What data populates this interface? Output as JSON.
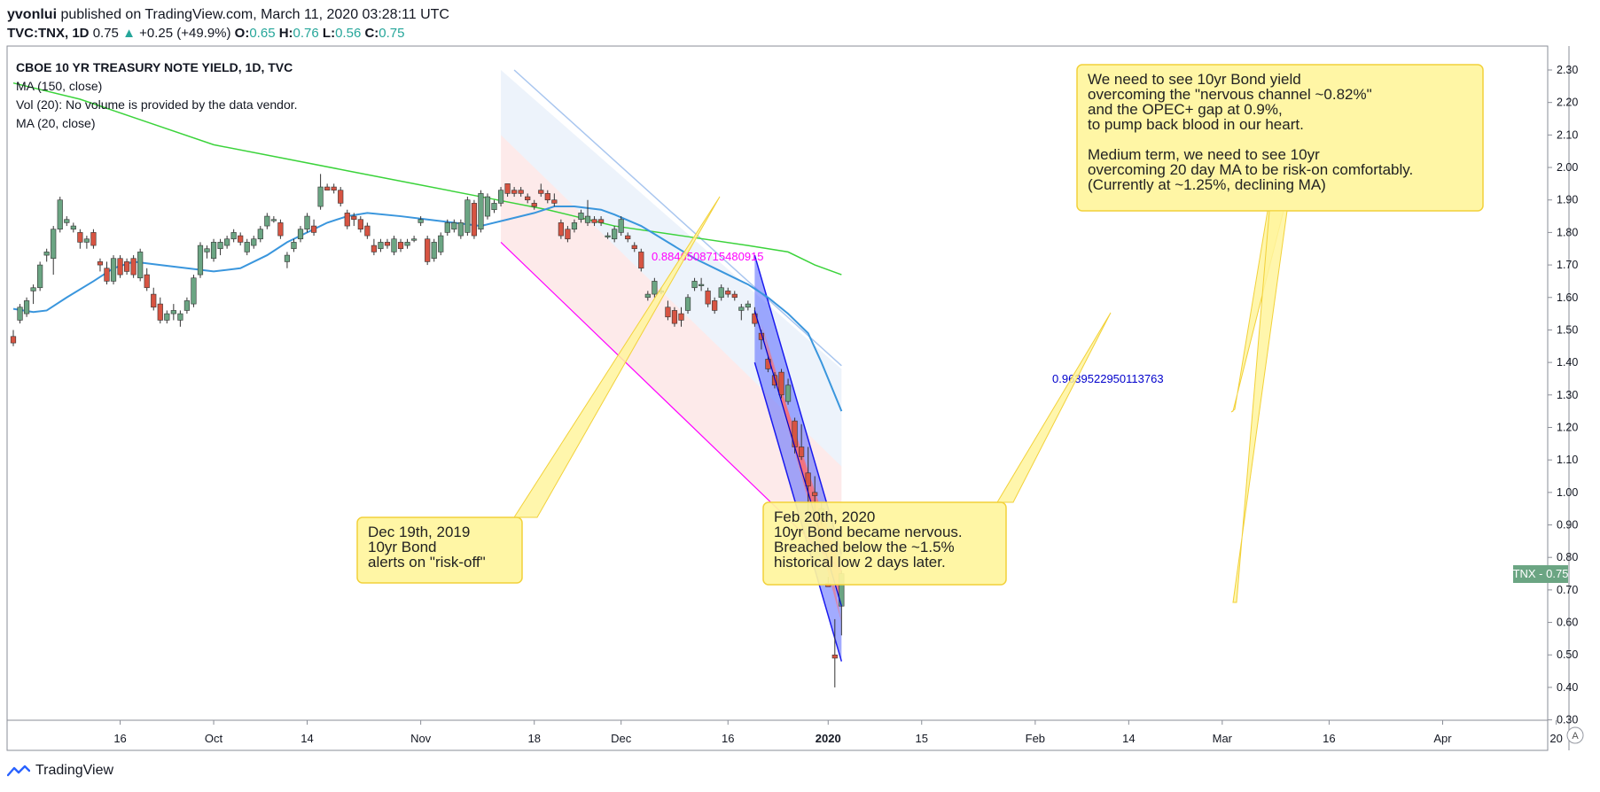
{
  "header": {
    "author": "yvonlui",
    "published": "published on TradingView.com, March 11, 2020 03:28:11 UTC",
    "symbol": "TVC:TNX, 1D",
    "last": "0.75",
    "change_arrow": "▲",
    "change": "+0.25 (+49.9%)",
    "o_label": "O:",
    "o_val": "0.65",
    "h_label": "H:",
    "h_val": "0.76",
    "l_label": "L:",
    "l_val": "0.56",
    "c_label": "C:",
    "c_val": "0.75"
  },
  "legend": {
    "title": "CBOE 10 YR TREASURY NOTE YIELD, 1D, TVC",
    "ma150": "MA (150, close)",
    "vol": "Vol (20): No volume is provided by the data vendor.",
    "ma20": "MA (20, close)"
  },
  "colors": {
    "up": "#6ba583",
    "down": "#d75442",
    "ma150": "#3bd33b",
    "ma20": "#3a96dd",
    "callout_bg": "#fff59d",
    "callout_border": "#f2d13a",
    "channel_red": "#f7b8b8",
    "channel_blue": "#b8cff0",
    "fib_magenta": "#ff00ff",
    "fib_blue": "#0000cc"
  },
  "footer": {
    "brand": "TradingView"
  },
  "price_tag": {
    "symbol": "TNX",
    "value": "0.75"
  },
  "annotations": {
    "callout1": [
      "Dec 19th, 2019",
      "10yr Bond",
      "alerts on \"risk-off\""
    ],
    "callout2": [
      "Feb 20th, 2020",
      "10yr Bond became nervous.",
      "Breached below the ~1.5%",
      "historical low 2 days later."
    ],
    "callout3": [
      "We need to see 10yr Bond yield",
      "overcoming the \"nervous channel ~0.82%\"",
      "and the OPEC+ gap at 0.9%,",
      "to pump back blood in our heart.",
      "",
      "Medium term, we need to see 10yr",
      "overcoming 20 day MA to be risk-on comfortably.",
      "(Currently at ~1.25%, declining MA)"
    ],
    "fib1": "0.8846508715480915",
    "fib2": "0.9639522950113763"
  },
  "chart_data": {
    "type": "candlestick",
    "title": "CBOE 10 YR TREASURY NOTE YIELD, 1D, TVC",
    "y_ticks": [
      "2.30",
      "2.20",
      "2.10",
      "2.00",
      "1.90",
      "1.80",
      "1.70",
      "1.60",
      "1.50",
      "1.40",
      "1.30",
      "1.20",
      "1.10",
      "1.00",
      "0.90",
      "0.80",
      "0.70",
      "0.60",
      "0.50",
      "0.40",
      "0.30"
    ],
    "ylim": [
      0.3,
      2.3
    ],
    "x_ticks": [
      {
        "label": "16",
        "x": 16,
        "bold": false
      },
      {
        "label": "Oct",
        "x": 30,
        "bold": false
      },
      {
        "label": "14",
        "x": 44,
        "bold": false
      },
      {
        "label": "Nov",
        "x": 61,
        "bold": false
      },
      {
        "label": "18",
        "x": 78,
        "bold": false
      },
      {
        "label": "Dec",
        "x": 91,
        "bold": false
      },
      {
        "label": "16",
        "x": 107,
        "bold": false
      },
      {
        "label": "2020",
        "x": 122,
        "bold": true
      },
      {
        "label": "15",
        "x": 136,
        "bold": false
      },
      {
        "label": "Feb",
        "x": 153,
        "bold": false
      },
      {
        "label": "14",
        "x": 167,
        "bold": false
      },
      {
        "label": "Mar",
        "x": 181,
        "bold": false
      },
      {
        "label": "16",
        "x": 197,
        "bold": false
      },
      {
        "label": "Apr",
        "x": 214,
        "bold": false
      },
      {
        "label": "20",
        "x": 231,
        "bold": false
      }
    ],
    "candles": [
      [
        0,
        1.48,
        1.5,
        1.45,
        1.46
      ],
      [
        1,
        1.53,
        1.58,
        1.52,
        1.57
      ],
      [
        2,
        1.55,
        1.6,
        1.54,
        1.59
      ],
      [
        3,
        1.62,
        1.64,
        1.58,
        1.63
      ],
      [
        4,
        1.63,
        1.71,
        1.62,
        1.7
      ],
      [
        5,
        1.73,
        1.75,
        1.71,
        1.74
      ],
      [
        6,
        1.72,
        1.82,
        1.67,
        1.81
      ],
      [
        7,
        1.81,
        1.91,
        1.8,
        1.9
      ],
      [
        8,
        1.83,
        1.85,
        1.82,
        1.84
      ],
      [
        9,
        1.81,
        1.83,
        1.8,
        1.82
      ],
      [
        10,
        1.8,
        1.81,
        1.75,
        1.77
      ],
      [
        11,
        1.77,
        1.79,
        1.75,
        1.78
      ],
      [
        12,
        1.8,
        1.81,
        1.75,
        1.76
      ],
      [
        13,
        1.71,
        1.72,
        1.68,
        1.7
      ],
      [
        14,
        1.69,
        1.71,
        1.64,
        1.65
      ],
      [
        15,
        1.65,
        1.73,
        1.64,
        1.72
      ],
      [
        16,
        1.72,
        1.73,
        1.66,
        1.67
      ],
      [
        17,
        1.71,
        1.72,
        1.67,
        1.68
      ],
      [
        18,
        1.72,
        1.73,
        1.66,
        1.67
      ],
      [
        19,
        1.66,
        1.75,
        1.65,
        1.74
      ],
      [
        20,
        1.67,
        1.69,
        1.62,
        1.63
      ],
      [
        21,
        1.61,
        1.63,
        1.56,
        1.57
      ],
      [
        22,
        1.58,
        1.6,
        1.52,
        1.53
      ],
      [
        23,
        1.53,
        1.56,
        1.52,
        1.55
      ],
      [
        24,
        1.55,
        1.58,
        1.53,
        1.56
      ],
      [
        25,
        1.53,
        1.56,
        1.51,
        1.55
      ],
      [
        26,
        1.56,
        1.6,
        1.55,
        1.59
      ],
      [
        27,
        1.58,
        1.67,
        1.57,
        1.66
      ],
      [
        28,
        1.67,
        1.77,
        1.66,
        1.76
      ],
      [
        29,
        1.74,
        1.76,
        1.72,
        1.75
      ],
      [
        30,
        1.72,
        1.78,
        1.71,
        1.77
      ],
      [
        31,
        1.75,
        1.78,
        1.73,
        1.77
      ],
      [
        32,
        1.76,
        1.79,
        1.75,
        1.78
      ],
      [
        33,
        1.78,
        1.81,
        1.77,
        1.8
      ],
      [
        34,
        1.79,
        1.8,
        1.76,
        1.77
      ],
      [
        35,
        1.74,
        1.78,
        1.73,
        1.77
      ],
      [
        36,
        1.76,
        1.79,
        1.75,
        1.78
      ],
      [
        37,
        1.78,
        1.82,
        1.77,
        1.81
      ],
      [
        38,
        1.82,
        1.86,
        1.81,
        1.85
      ],
      [
        39,
        1.84,
        1.85,
        1.83,
        1.84
      ],
      [
        40,
        1.83,
        1.84,
        1.78,
        1.79
      ],
      [
        41,
        1.71,
        1.74,
        1.69,
        1.73
      ],
      [
        42,
        1.75,
        1.78,
        1.74,
        1.77
      ],
      [
        43,
        1.78,
        1.82,
        1.77,
        1.81
      ],
      [
        44,
        1.81,
        1.86,
        1.8,
        1.85
      ],
      [
        45,
        1.82,
        1.84,
        1.79,
        1.8
      ],
      [
        46,
        1.88,
        1.98,
        1.87,
        1.94
      ],
      [
        47,
        1.94,
        1.95,
        1.93,
        1.93
      ],
      [
        48,
        1.94,
        1.95,
        1.92,
        1.93
      ],
      [
        49,
        1.93,
        1.94,
        1.88,
        1.89
      ],
      [
        50,
        1.86,
        1.87,
        1.81,
        1.82
      ],
      [
        51,
        1.85,
        1.86,
        1.82,
        1.84
      ],
      [
        52,
        1.84,
        1.85,
        1.8,
        1.81
      ],
      [
        53,
        1.82,
        1.83,
        1.78,
        1.79
      ],
      [
        54,
        1.76,
        1.78,
        1.73,
        1.74
      ],
      [
        55,
        1.75,
        1.78,
        1.74,
        1.77
      ],
      [
        56,
        1.77,
        1.78,
        1.75,
        1.76
      ],
      [
        57,
        1.74,
        1.79,
        1.73,
        1.78
      ],
      [
        58,
        1.77,
        1.78,
        1.74,
        1.75
      ],
      [
        59,
        1.76,
        1.78,
        1.75,
        1.77
      ],
      [
        60,
        1.78,
        1.79,
        1.77,
        1.78
      ],
      [
        61,
        1.83,
        1.85,
        1.82,
        1.84
      ],
      [
        62,
        1.78,
        1.79,
        1.7,
        1.71
      ],
      [
        63,
        1.72,
        1.78,
        1.71,
        1.77
      ],
      [
        64,
        1.74,
        1.8,
        1.73,
        1.79
      ],
      [
        65,
        1.8,
        1.84,
        1.79,
        1.83
      ],
      [
        66,
        1.81,
        1.84,
        1.8,
        1.83
      ],
      [
        67,
        1.79,
        1.84,
        1.78,
        1.83
      ],
      [
        68,
        1.8,
        1.91,
        1.79,
        1.9
      ],
      [
        69,
        1.89,
        1.9,
        1.78,
        1.79
      ],
      [
        70,
        1.81,
        1.93,
        1.8,
        1.92
      ],
      [
        71,
        1.85,
        1.92,
        1.84,
        1.91
      ],
      [
        72,
        1.87,
        1.9,
        1.86,
        1.89
      ],
      [
        73,
        1.89,
        1.94,
        1.88,
        1.93
      ],
      [
        74,
        1.95,
        1.95,
        1.91,
        1.92
      ],
      [
        75,
        1.93,
        1.94,
        1.91,
        1.92
      ],
      [
        76,
        1.93,
        1.94,
        1.91,
        1.92
      ],
      [
        77,
        1.91,
        1.92,
        1.89,
        1.9
      ],
      [
        78,
        1.89,
        1.9,
        1.87,
        1.88
      ],
      [
        79,
        1.93,
        1.95,
        1.91,
        1.92
      ],
      [
        80,
        1.92,
        1.93,
        1.89,
        1.9
      ],
      [
        81,
        1.9,
        1.92,
        1.88,
        1.89
      ],
      [
        82,
        1.83,
        1.84,
        1.78,
        1.79
      ],
      [
        83,
        1.81,
        1.82,
        1.77,
        1.78
      ],
      [
        84,
        1.81,
        1.84,
        1.8,
        1.83
      ],
      [
        85,
        1.84,
        1.87,
        1.83,
        1.86
      ],
      [
        86,
        1.83,
        1.9,
        1.82,
        1.85
      ],
      [
        87,
        1.84,
        1.85,
        1.82,
        1.83
      ],
      [
        88,
        1.84,
        1.85,
        1.82,
        1.83
      ],
      [
        89,
        1.79,
        1.8,
        1.78,
        1.79
      ],
      [
        90,
        1.78,
        1.82,
        1.77,
        1.81
      ],
      [
        91,
        1.8,
        1.85,
        1.79,
        1.84
      ],
      [
        92,
        1.79,
        1.8,
        1.77,
        1.78
      ],
      [
        93,
        1.76,
        1.77,
        1.74,
        1.75
      ],
      [
        94,
        1.74,
        1.75,
        1.68,
        1.69
      ],
      [
        95,
        1.6,
        1.62,
        1.59,
        1.61
      ],
      [
        96,
        1.61,
        1.66,
        1.6,
        1.65
      ],
      [
        97,
        1.62,
        1.63,
        1.61,
        1.62
      ],
      [
        98,
        1.57,
        1.59,
        1.53,
        1.54
      ],
      [
        99,
        1.56,
        1.57,
        1.51,
        1.52
      ],
      [
        100,
        1.55,
        1.57,
        1.51,
        1.53
      ],
      [
        101,
        1.56,
        1.61,
        1.55,
        1.6
      ],
      [
        102,
        1.63,
        1.66,
        1.62,
        1.65
      ],
      [
        103,
        1.64,
        1.66,
        1.62,
        1.64
      ],
      [
        104,
        1.62,
        1.63,
        1.57,
        1.58
      ],
      [
        105,
        1.59,
        1.6,
        1.55,
        1.56
      ],
      [
        106,
        1.6,
        1.64,
        1.59,
        1.63
      ],
      [
        107,
        1.62,
        1.63,
        1.6,
        1.61
      ],
      [
        108,
        1.61,
        1.62,
        1.59,
        1.6
      ],
      [
        109,
        1.56,
        1.58,
        1.53,
        1.57
      ],
      [
        110,
        1.57,
        1.59,
        1.56,
        1.58
      ],
      [
        111,
        1.55,
        1.57,
        1.51,
        1.52
      ],
      [
        112,
        1.49,
        1.5,
        1.44,
        1.47
      ],
      [
        113,
        1.41,
        1.42,
        1.37,
        1.38
      ],
      [
        114,
        1.36,
        1.37,
        1.32,
        1.33
      ],
      [
        115,
        1.37,
        1.38,
        1.29,
        1.3
      ],
      [
        116,
        1.28,
        1.35,
        1.27,
        1.33
      ],
      [
        117,
        1.22,
        1.23,
        1.12,
        1.14
      ],
      [
        118,
        1.14,
        1.21,
        1.1,
        1.11
      ],
      [
        119,
        1.06,
        1.14,
        0.92,
        1.02
      ],
      [
        120,
        1.0,
        1.05,
        0.91,
        0.99
      ],
      [
        121,
        0.92,
        0.97,
        0.9,
        0.95
      ],
      [
        122,
        0.72,
        0.74,
        0.71,
        0.71
      ],
      [
        123,
        0.5,
        0.61,
        0.4,
        0.49
      ],
      [
        124,
        0.65,
        0.76,
        0.56,
        0.75
      ]
    ],
    "ma20": [
      [
        0,
        1.565
      ],
      [
        3,
        1.555
      ],
      [
        5,
        1.56
      ],
      [
        8,
        1.6
      ],
      [
        12,
        1.65
      ],
      [
        15,
        1.69
      ],
      [
        18,
        1.71
      ],
      [
        22,
        1.7
      ],
      [
        26,
        1.69
      ],
      [
        30,
        1.68
      ],
      [
        34,
        1.69
      ],
      [
        38,
        1.73
      ],
      [
        41,
        1.77
      ],
      [
        44,
        1.8
      ],
      [
        47,
        1.83
      ],
      [
        50,
        1.85
      ],
      [
        53,
        1.86
      ],
      [
        58,
        1.85
      ],
      [
        62,
        1.84
      ],
      [
        66,
        1.83
      ],
      [
        70,
        1.82
      ],
      [
        74,
        1.84
      ],
      [
        78,
        1.86
      ],
      [
        81,
        1.88
      ],
      [
        84,
        1.88
      ],
      [
        88,
        1.87
      ],
      [
        90,
        1.855
      ],
      [
        94,
        1.82
      ],
      [
        98,
        1.77
      ],
      [
        102,
        1.72
      ],
      [
        106,
        1.68
      ],
      [
        110,
        1.64
      ],
      [
        113,
        1.6
      ],
      [
        116,
        1.55
      ],
      [
        119,
        1.49
      ],
      [
        121,
        1.4
      ],
      [
        123,
        1.3
      ],
      [
        124,
        1.25
      ]
    ],
    "ma150": [
      [
        0,
        2.26
      ],
      [
        10,
        2.21
      ],
      [
        20,
        2.14
      ],
      [
        30,
        2.07
      ],
      [
        40,
        2.03
      ],
      [
        50,
        1.99
      ],
      [
        60,
        1.95
      ],
      [
        70,
        1.91
      ],
      [
        80,
        1.87
      ],
      [
        90,
        1.82
      ],
      [
        100,
        1.79
      ],
      [
        110,
        1.76
      ],
      [
        116,
        1.74
      ],
      [
        120,
        1.7
      ],
      [
        124,
        1.67
      ]
    ],
    "fib_levels": [
      {
        "label": "0.8846508715480915",
        "x0": 73,
        "y0": 1.77,
        "x1": 124,
        "y1": 0.76,
        "color": "magenta"
      },
      {
        "label": "0.9639522950113763",
        "x0": 111,
        "y0": 1.56,
        "x1": 124,
        "y1": 0.65,
        "color": "blue"
      }
    ]
  }
}
